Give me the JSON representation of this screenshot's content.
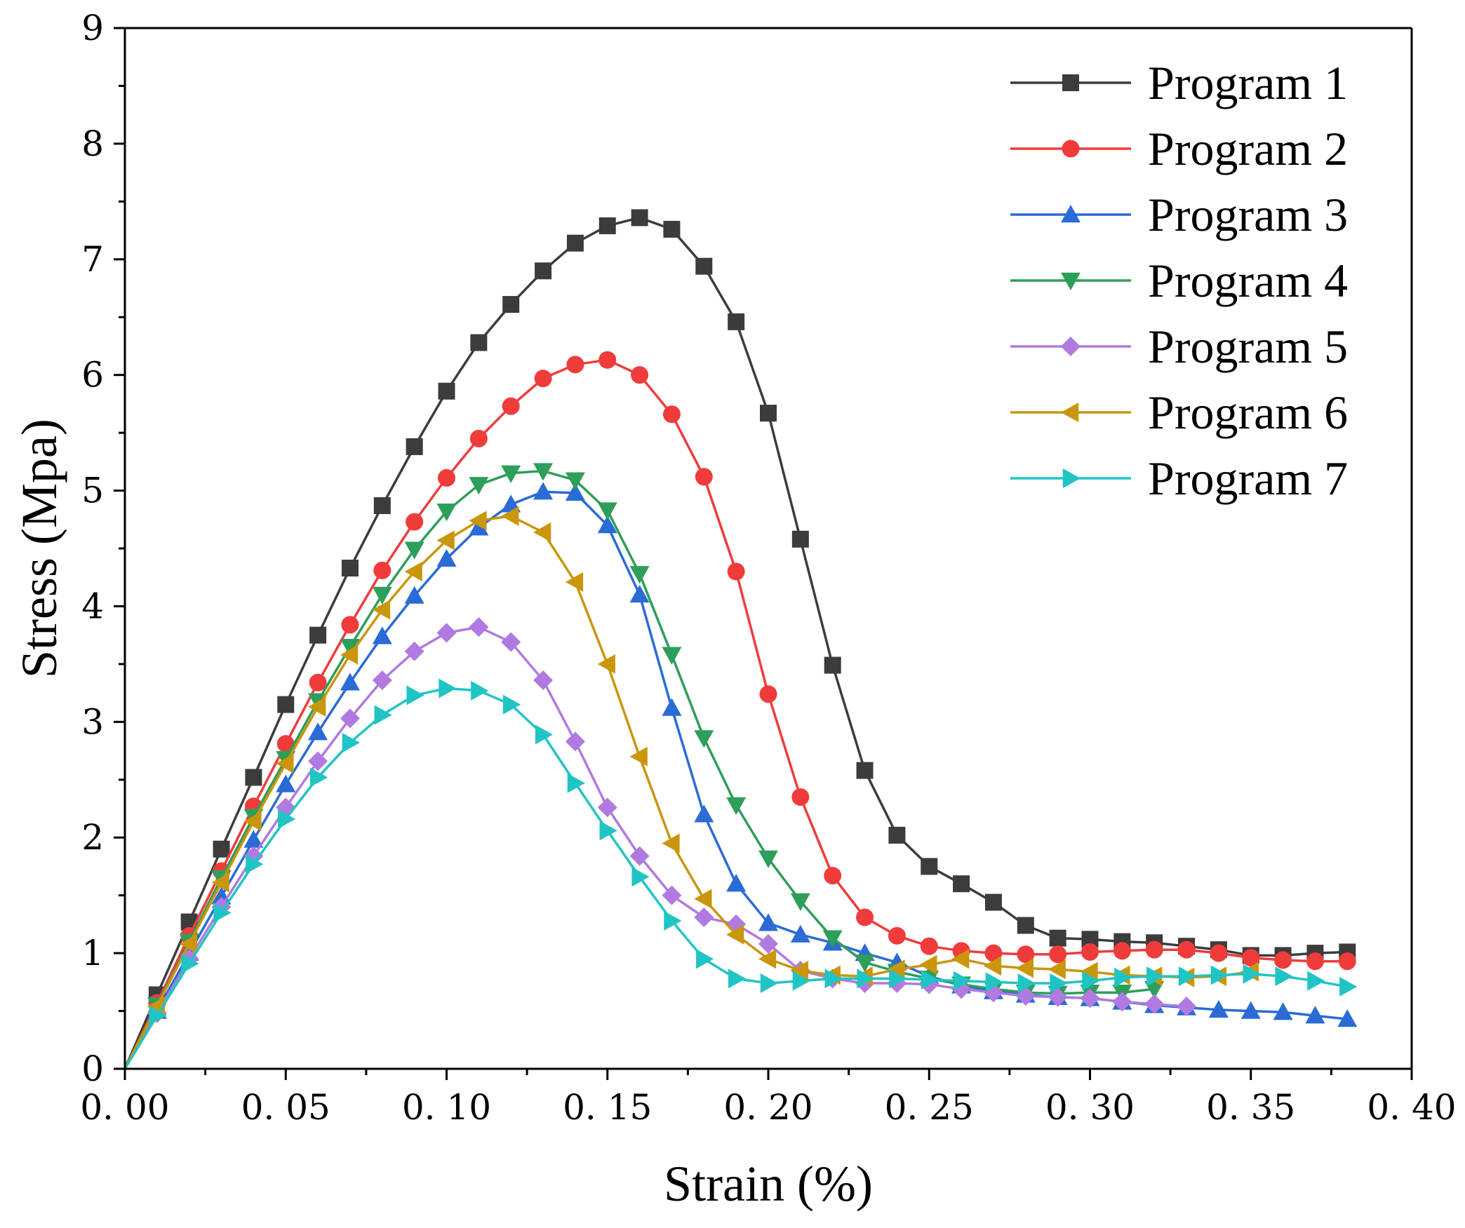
{
  "chart_data": {
    "type": "line",
    "title": "",
    "xlabel": "Strain (%)",
    "ylabel": "Stress (Mpa)",
    "xlim": [
      0,
      0.4
    ],
    "ylim": [
      0,
      9
    ],
    "x_ticks": [
      0,
      0.05,
      0.1,
      0.15,
      0.2,
      0.25,
      0.3,
      0.35,
      0.4
    ],
    "x_tick_labels": [
      "0. 00",
      "0. 05",
      "0. 10",
      "0. 15",
      "0. 20",
      "0. 25",
      "0. 30",
      "0. 35",
      "0. 40"
    ],
    "y_ticks": [
      0,
      1,
      2,
      3,
      4,
      5,
      6,
      7,
      8,
      9
    ],
    "y_tick_labels": [
      "0",
      "1",
      "2",
      "3",
      "4",
      "5",
      "6",
      "7",
      "8",
      "9"
    ],
    "legend_position": "top-right",
    "series": [
      {
        "name": "Program 1",
        "color": "#3c3c3c",
        "marker": "square",
        "x": [
          0,
          0.01,
          0.02,
          0.03,
          0.04,
          0.05,
          0.06,
          0.07,
          0.08,
          0.09,
          0.1,
          0.11,
          0.12,
          0.13,
          0.14,
          0.15,
          0.16,
          0.17,
          0.18,
          0.19,
          0.2,
          0.21,
          0.22,
          0.23,
          0.24,
          0.25,
          0.26,
          0.27,
          0.28,
          0.29,
          0.3,
          0.31,
          0.32,
          0.33,
          0.34,
          0.35,
          0.36,
          0.37,
          0.38
        ],
        "y": [
          0,
          0.64,
          1.27,
          1.9,
          2.52,
          3.15,
          3.75,
          4.33,
          4.87,
          5.38,
          5.86,
          6.28,
          6.61,
          6.9,
          7.14,
          7.29,
          7.36,
          7.26,
          6.94,
          6.46,
          5.67,
          4.58,
          3.49,
          2.58,
          2.02,
          1.75,
          1.6,
          1.44,
          1.24,
          1.13,
          1.12,
          1.1,
          1.09,
          1.06,
          1.03,
          0.98,
          0.98,
          1.0,
          1.01
        ]
      },
      {
        "name": "Program 2",
        "color": "#f03b3b",
        "marker": "circle",
        "x": [
          0,
          0.01,
          0.02,
          0.03,
          0.04,
          0.05,
          0.06,
          0.07,
          0.08,
          0.09,
          0.1,
          0.11,
          0.12,
          0.13,
          0.14,
          0.15,
          0.16,
          0.17,
          0.18,
          0.19,
          0.2,
          0.21,
          0.22,
          0.23,
          0.24,
          0.25,
          0.26,
          0.27,
          0.28,
          0.29,
          0.3,
          0.31,
          0.32,
          0.33,
          0.34,
          0.35,
          0.36,
          0.37,
          0.38
        ],
        "y": [
          0,
          0.57,
          1.15,
          1.71,
          2.27,
          2.81,
          3.34,
          3.84,
          4.31,
          4.73,
          5.11,
          5.45,
          5.73,
          5.97,
          6.09,
          6.13,
          6.0,
          5.66,
          5.12,
          4.3,
          3.24,
          2.35,
          1.67,
          1.31,
          1.15,
          1.06,
          1.02,
          1.0,
          0.99,
          0.99,
          1.01,
          1.02,
          1.03,
          1.03,
          1.0,
          0.96,
          0.94,
          0.93,
          0.93
        ]
      },
      {
        "name": "Program 3",
        "color": "#2a6bd6",
        "marker": "triangle-up",
        "x": [
          0,
          0.01,
          0.02,
          0.03,
          0.04,
          0.05,
          0.06,
          0.07,
          0.08,
          0.09,
          0.1,
          0.11,
          0.12,
          0.13,
          0.14,
          0.15,
          0.16,
          0.17,
          0.18,
          0.19,
          0.2,
          0.21,
          0.22,
          0.23,
          0.24,
          0.25,
          0.26,
          0.27,
          0.28,
          0.29,
          0.3,
          0.31,
          0.32,
          0.33,
          0.34,
          0.35,
          0.36,
          0.37,
          0.38
        ],
        "y": [
          0,
          0.5,
          1.0,
          1.49,
          1.98,
          2.46,
          2.91,
          3.34,
          3.74,
          4.09,
          4.41,
          4.68,
          4.88,
          4.99,
          4.98,
          4.7,
          4.1,
          3.12,
          2.2,
          1.6,
          1.26,
          1.16,
          1.09,
          1.0,
          0.92,
          0.8,
          0.72,
          0.67,
          0.64,
          0.62,
          0.61,
          0.58,
          0.55,
          0.53,
          0.51,
          0.5,
          0.49,
          0.46,
          0.43
        ]
      },
      {
        "name": "Program 4",
        "color": "#2e9e5b",
        "marker": "triangle-down",
        "x": [
          0,
          0.01,
          0.02,
          0.03,
          0.04,
          0.05,
          0.06,
          0.07,
          0.08,
          0.09,
          0.1,
          0.11,
          0.12,
          0.13,
          0.14,
          0.15,
          0.16,
          0.17,
          0.18,
          0.19,
          0.2,
          0.21,
          0.22,
          0.23,
          0.24,
          0.25,
          0.26,
          0.27,
          0.28,
          0.29,
          0.3,
          0.31,
          0.32
        ],
        "y": [
          0,
          0.55,
          1.1,
          1.65,
          2.18,
          2.68,
          3.18,
          3.65,
          4.1,
          4.49,
          4.82,
          5.05,
          5.15,
          5.17,
          5.09,
          4.83,
          4.28,
          3.58,
          2.86,
          2.28,
          1.82,
          1.45,
          1.13,
          0.92,
          0.84,
          0.78,
          0.73,
          0.69,
          0.66,
          0.65,
          0.66,
          0.66,
          0.69
        ]
      },
      {
        "name": "Program 5",
        "color": "#b07ae0",
        "marker": "diamond",
        "x": [
          0,
          0.01,
          0.02,
          0.03,
          0.04,
          0.05,
          0.06,
          0.07,
          0.08,
          0.09,
          0.1,
          0.11,
          0.12,
          0.13,
          0.14,
          0.15,
          0.16,
          0.17,
          0.18,
          0.19,
          0.2,
          0.21,
          0.22,
          0.23,
          0.24,
          0.25,
          0.26,
          0.27,
          0.28,
          0.29,
          0.3,
          0.31,
          0.32,
          0.33
        ],
        "y": [
          0,
          0.48,
          0.95,
          1.4,
          1.84,
          2.26,
          2.66,
          3.03,
          3.36,
          3.61,
          3.77,
          3.82,
          3.69,
          3.36,
          2.83,
          2.26,
          1.84,
          1.5,
          1.31,
          1.25,
          1.08,
          0.85,
          0.78,
          0.74,
          0.74,
          0.73,
          0.69,
          0.66,
          0.63,
          0.62,
          0.61,
          0.58,
          0.56,
          0.54
        ]
      },
      {
        "name": "Program 6",
        "color": "#c9960c",
        "marker": "triangle-left",
        "x": [
          0,
          0.01,
          0.02,
          0.03,
          0.04,
          0.05,
          0.06,
          0.07,
          0.08,
          0.09,
          0.1,
          0.11,
          0.12,
          0.13,
          0.14,
          0.15,
          0.16,
          0.17,
          0.18,
          0.19,
          0.2,
          0.21,
          0.22,
          0.23,
          0.24,
          0.25,
          0.26,
          0.27,
          0.28,
          0.29,
          0.3,
          0.31,
          0.32,
          0.33,
          0.34,
          0.35
        ],
        "y": [
          0,
          0.54,
          1.08,
          1.61,
          2.14,
          2.64,
          3.13,
          3.58,
          3.97,
          4.3,
          4.57,
          4.74,
          4.78,
          4.64,
          4.21,
          3.5,
          2.7,
          1.95,
          1.47,
          1.16,
          0.95,
          0.85,
          0.81,
          0.8,
          0.86,
          0.9,
          0.95,
          0.89,
          0.87,
          0.86,
          0.84,
          0.81,
          0.8,
          0.79,
          0.8,
          0.84
        ]
      },
      {
        "name": "Program 7",
        "color": "#21c4c4",
        "marker": "triangle-right",
        "x": [
          0,
          0.01,
          0.02,
          0.03,
          0.04,
          0.05,
          0.06,
          0.07,
          0.08,
          0.09,
          0.1,
          0.11,
          0.12,
          0.13,
          0.14,
          0.15,
          0.16,
          0.17,
          0.18,
          0.19,
          0.2,
          0.21,
          0.22,
          0.23,
          0.24,
          0.25,
          0.26,
          0.27,
          0.28,
          0.29,
          0.3,
          0.31,
          0.32,
          0.33,
          0.34,
          0.35,
          0.36,
          0.37,
          0.38
        ],
        "y": [
          0,
          0.46,
          0.91,
          1.35,
          1.77,
          2.16,
          2.52,
          2.82,
          3.06,
          3.23,
          3.29,
          3.27,
          3.15,
          2.89,
          2.47,
          2.06,
          1.66,
          1.28,
          0.95,
          0.78,
          0.74,
          0.76,
          0.78,
          0.78,
          0.78,
          0.77,
          0.76,
          0.75,
          0.74,
          0.74,
          0.76,
          0.79,
          0.8,
          0.8,
          0.81,
          0.82,
          0.8,
          0.76,
          0.71
        ]
      }
    ]
  }
}
